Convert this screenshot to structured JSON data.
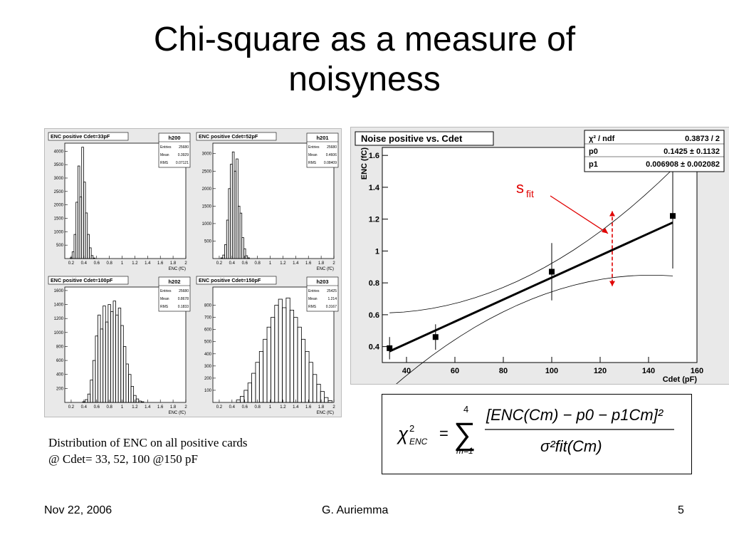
{
  "slide": {
    "title_line1": "Chi-square as a measure of",
    "title_line2": "noisyness",
    "caption_line1": "Distribution of ENC on all positive cards",
    "caption_line2": "@ Cdet= 33, 52, 100 @150 pF",
    "footer_date": "Nov 22, 2006",
    "footer_author": "G. Auriemma",
    "footer_page": "5",
    "sfit_label": "s",
    "sfit_sub": "fit"
  },
  "formula": {
    "lhs": "χ",
    "lhs_sup": "2",
    "lhs_sub": "ENC",
    "equals": "=",
    "sum_top": "4",
    "sum_bottom": "m=1",
    "numerator": "[ENC(Cm) − p0 − p1Cm]²",
    "denominator": "σ²fit(Cm)"
  },
  "colors": {
    "accent_red": "#e00000",
    "panel_bg": "#e9e9e9",
    "frame_bg": "#ffffff"
  },
  "chart_data": [
    {
      "type": "bar",
      "title": "ENC positive Cdet=33pF",
      "stats": {
        "name": "h200",
        "entries": "25680",
        "mean": "0.3929",
        "rms": "0.07121"
      },
      "stat_labels": {
        "entries": "Entries",
        "mean": "Mean",
        "rms": "RMS"
      },
      "xlabel": "ENC (fC)",
      "xlim": [
        0.1,
        2.0
      ],
      "ylim": [
        0,
        4300
      ],
      "xticks": [
        "0.2",
        "0.4",
        "0.6",
        "0.8",
        "1",
        "1.2",
        "1.4",
        "1.6",
        "1.8",
        "2"
      ],
      "yticks": [
        "500",
        "1000",
        "1500",
        "2000",
        "2500",
        "3000",
        "3500",
        "4000"
      ],
      "x": [
        0.2,
        0.23,
        0.26,
        0.29,
        0.32,
        0.35,
        0.38,
        0.41,
        0.44,
        0.47,
        0.5,
        0.53,
        0.56
      ],
      "values": [
        30,
        250,
        900,
        2100,
        3450,
        2300,
        4150,
        2850,
        1700,
        900,
        400,
        110,
        20
      ]
    },
    {
      "type": "bar",
      "title": "ENC positive Cdet=52pF",
      "stats": {
        "name": "h201",
        "entries": "25680",
        "mean": "0.4606",
        "rms": "0.08409"
      },
      "stat_labels": {
        "entries": "Entries",
        "mean": "Mean",
        "rms": "RMS"
      },
      "xlabel": "ENC (fC)",
      "xlim": [
        0.1,
        2.0
      ],
      "ylim": [
        0,
        3300
      ],
      "xticks": [
        "0.2",
        "0.4",
        "0.6",
        "0.8",
        "1",
        "1.2",
        "1.4",
        "1.6",
        "1.8",
        "2"
      ],
      "yticks": [
        "500",
        "1000",
        "1500",
        "2000",
        "2500",
        "3000"
      ],
      "x": [
        0.24,
        0.27,
        0.3,
        0.33,
        0.36,
        0.39,
        0.42,
        0.45,
        0.48,
        0.51,
        0.54,
        0.57,
        0.6,
        0.63,
        0.66
      ],
      "values": [
        20,
        100,
        400,
        1100,
        2000,
        2700,
        3050,
        2500,
        2850,
        1500,
        1300,
        600,
        280,
        80,
        20
      ]
    },
    {
      "type": "bar",
      "title": "ENC positive Cdet=100pF",
      "stats": {
        "name": "h202",
        "entries": "25680",
        "mean": "0.8678",
        "rms": "0.1833"
      },
      "stat_labels": {
        "entries": "Entries",
        "mean": "Mean",
        "rms": "RMS"
      },
      "xlabel": "ENC (fC)",
      "xlim": [
        0.1,
        2.0
      ],
      "ylim": [
        0,
        1650
      ],
      "xticks": [
        "0.2",
        "0.4",
        "0.6",
        "0.8",
        "1",
        "1.2",
        "1.4",
        "1.6",
        "1.8",
        "2"
      ],
      "yticks": [
        "200",
        "400",
        "600",
        "800",
        "1000",
        "1200",
        "1400",
        "1600"
      ],
      "x": [
        0.4,
        0.44,
        0.48,
        0.52,
        0.56,
        0.6,
        0.64,
        0.68,
        0.72,
        0.76,
        0.8,
        0.84,
        0.88,
        0.92,
        0.96,
        1.0,
        1.04,
        1.08,
        1.12,
        1.16,
        1.2,
        1.24,
        1.28,
        1.32
      ],
      "values": [
        10,
        40,
        120,
        320,
        600,
        950,
        1250,
        1050,
        1380,
        1150,
        1400,
        1300,
        1450,
        1250,
        1350,
        1100,
        800,
        550,
        400,
        230,
        100,
        50,
        20,
        10
      ]
    },
    {
      "type": "bar",
      "title": "ENC positive Cdet=150pF",
      "stats": {
        "name": "h203",
        "entries": "25425",
        "mean": "1.214",
        "rms": "0.3167"
      },
      "stat_labels": {
        "entries": "Entries",
        "mean": "Mean",
        "rms": "RMS"
      },
      "xlabel": "ENC (fC)",
      "xlim": [
        0.1,
        2.0
      ],
      "ylim": [
        0,
        950
      ],
      "xticks": [
        "0.2",
        "0.4",
        "0.6",
        "0.8",
        "1",
        "1.2",
        "1.4",
        "1.6",
        "1.8",
        "2"
      ],
      "yticks": [
        "100",
        "200",
        "300",
        "400",
        "500",
        "600",
        "700",
        "800"
      ],
      "x": [
        0.5,
        0.56,
        0.62,
        0.68,
        0.74,
        0.8,
        0.86,
        0.92,
        0.98,
        1.04,
        1.1,
        1.16,
        1.22,
        1.28,
        1.34,
        1.4,
        1.46,
        1.52,
        1.58,
        1.64,
        1.7,
        1.76,
        1.82,
        1.88,
        1.94
      ],
      "values": [
        20,
        50,
        100,
        160,
        240,
        330,
        420,
        520,
        620,
        700,
        800,
        850,
        780,
        860,
        760,
        700,
        620,
        520,
        420,
        330,
        230,
        150,
        90,
        40,
        15
      ]
    },
    {
      "type": "scatter",
      "title": "Noise positive vs. Cdet",
      "xlabel": "Cdet (pF)",
      "ylabel": "ENC (fC)",
      "xlim": [
        30,
        160
      ],
      "ylim": [
        0.3,
        1.65
      ],
      "xticks": [
        "40",
        "60",
        "80",
        "100",
        "120",
        "140",
        "160"
      ],
      "yticks": [
        "0.4",
        "0.6",
        "0.8",
        "1",
        "1.2",
        "1.4",
        "1.6"
      ],
      "x": [
        33,
        52,
        100,
        150
      ],
      "values": [
        0.39,
        0.46,
        0.87,
        1.22
      ],
      "y_err": [
        0.07,
        0.08,
        0.18,
        0.33
      ],
      "fit": {
        "p0": 0.1425,
        "p1": 0.006908
      },
      "stats": {
        "chi2_label": "χ² / ndf",
        "chi2_value": "0.3873 / 2",
        "p0_label": "p0",
        "p0_value": "0.1425 ± 0.1132",
        "p1_label": "p1",
        "p1_value": "0.006908 ± 0.002082"
      }
    }
  ]
}
